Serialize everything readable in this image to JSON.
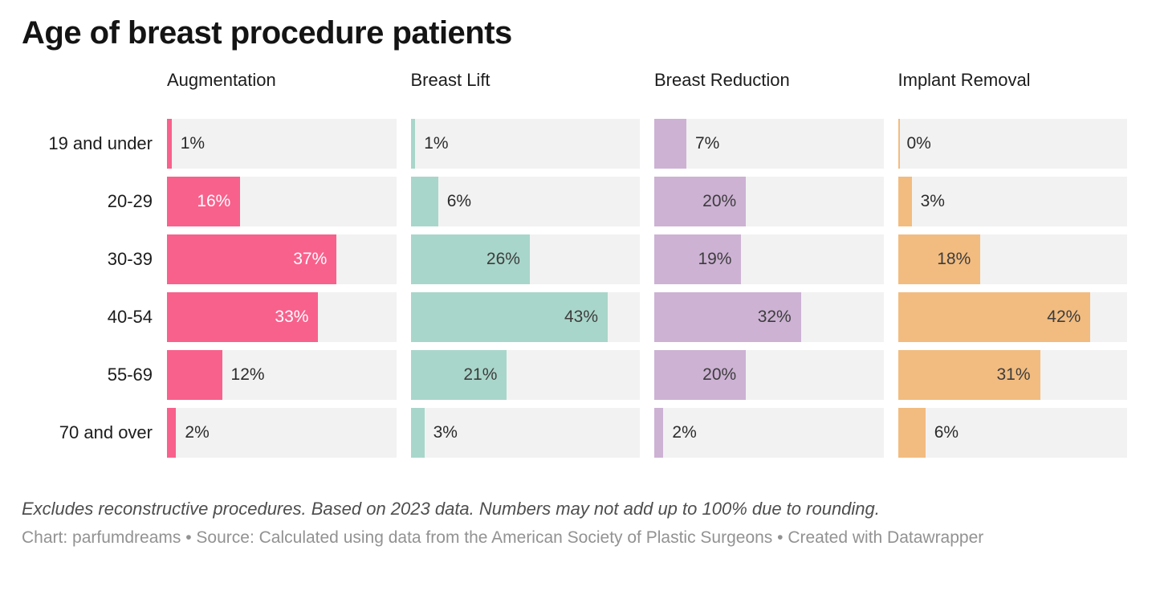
{
  "title": "Age of breast procedure patients",
  "chart_data": {
    "type": "bar",
    "layout": "small-multiples-horizontal-bars",
    "categories": [
      "19 and under",
      "20-29",
      "30-39",
      "40-54",
      "55-69",
      "70 and over"
    ],
    "series": [
      {
        "name": "Augmentation",
        "color": "#F8618C",
        "inside_label_color": "#ffffff",
        "values": [
          1,
          16,
          37,
          33,
          12,
          2
        ]
      },
      {
        "name": "Breast Lift",
        "color": "#A9D6CA",
        "inside_label_color": "#3d3d3d",
        "values": [
          1,
          6,
          26,
          43,
          21,
          3
        ]
      },
      {
        "name": "Breast Reduction",
        "color": "#CDB2D4",
        "inside_label_color": "#3d3d3d",
        "values": [
          7,
          20,
          19,
          32,
          20,
          2
        ]
      },
      {
        "name": "Implant Removal",
        "color": "#F2BC80",
        "inside_label_color": "#3d3d3d",
        "values": [
          0,
          3,
          18,
          42,
          31,
          6
        ]
      }
    ],
    "value_suffix": "%",
    "axis_max": 50,
    "grid": false,
    "legend_position": "column-headers",
    "track_color": "#F2F2F2",
    "inside_label_min_value": 16
  },
  "footer": {
    "note": "Excludes reconstructive procedures. Based on 2023 data. Numbers may not add up to 100% due to rounding.",
    "byline": "Chart: parfumdreams • Source: Calculated using data from the American Society of Plastic Surgeons • Created with Datawrapper"
  }
}
